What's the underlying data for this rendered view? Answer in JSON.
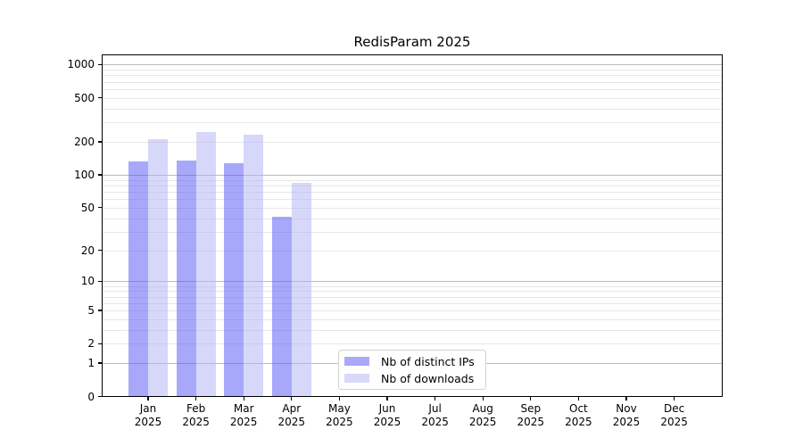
{
  "title": "RedisParam 2025",
  "chart_data": {
    "type": "bar",
    "title": "RedisParam 2025",
    "categories": [
      "Jan",
      "Feb",
      "Mar",
      "Apr",
      "May",
      "Jun",
      "Jul",
      "Aug",
      "Sep",
      "Oct",
      "Nov",
      "Dec"
    ],
    "year_label": "2025",
    "series": [
      {
        "name": "Nb of distinct IPs",
        "bar_color": "rgba(81,81,245,0.5)",
        "legend_color": "#a9a9f9",
        "values": [
          133,
          134,
          128,
          41,
          0,
          0,
          0,
          0,
          0,
          0,
          0,
          0
        ]
      },
      {
        "name": "Nb of downloads",
        "bar_color": "rgba(175,175,245,0.5)",
        "legend_color": "#d8d8f9",
        "values": [
          212,
          247,
          231,
          84,
          0,
          0,
          0,
          0,
          0,
          0,
          0,
          0
        ]
      }
    ],
    "y_scale": "log10(1+x)",
    "y_ticks": [
      0,
      1,
      2,
      5,
      10,
      20,
      50,
      100,
      200,
      500,
      1000
    ],
    "y_major_gridlines": [
      1,
      10,
      100,
      1000
    ],
    "y_minor_gridlines": [
      2,
      3,
      4,
      5,
      6,
      7,
      8,
      9,
      20,
      30,
      40,
      50,
      60,
      70,
      80,
      90,
      200,
      300,
      400,
      500,
      600,
      700,
      800,
      900
    ],
    "ylim": [
      0,
      1270
    ],
    "grid": true,
    "legend_position": "inside lower-center"
  }
}
